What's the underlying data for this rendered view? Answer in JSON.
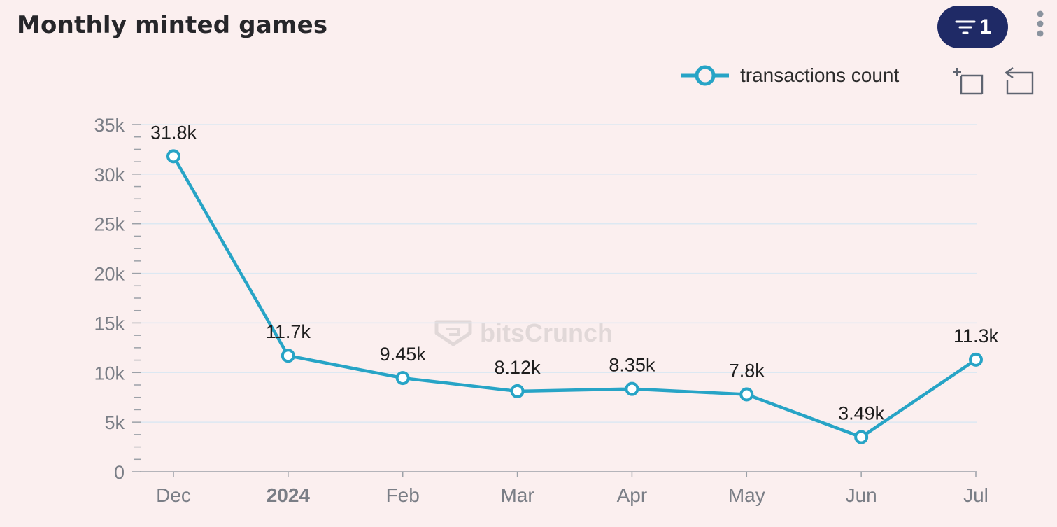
{
  "header": {
    "title": "Monthly minted games",
    "filter_count": "1"
  },
  "icons": {
    "filter": "filter-icon",
    "more": "more-vertical-icon",
    "zoom": "zoom-select-icon",
    "reset": "zoom-reset-icon"
  },
  "colors": {
    "series": "#27A4C6",
    "button_bg": "#1F2A66",
    "background": "#FBEFEF"
  },
  "watermark": {
    "text": "bitsCrunch"
  },
  "chart_data": {
    "type": "line",
    "title": "Monthly minted games",
    "xlabel": "",
    "ylabel": "",
    "ylim": [
      0,
      35000
    ],
    "grid": true,
    "legend_position": "top-right",
    "categories": [
      "Dec",
      "2024",
      "Feb",
      "Mar",
      "Apr",
      "May",
      "Jun",
      "Jul"
    ],
    "y_ticks": [
      {
        "value": 0,
        "label": "0"
      },
      {
        "value": 5000,
        "label": "5k"
      },
      {
        "value": 10000,
        "label": "10k"
      },
      {
        "value": 15000,
        "label": "15k"
      },
      {
        "value": 20000,
        "label": "20k"
      },
      {
        "value": 25000,
        "label": "25k"
      },
      {
        "value": 30000,
        "label": "30k"
      },
      {
        "value": 35000,
        "label": "35k"
      }
    ],
    "series": [
      {
        "name": "transactions count",
        "values": [
          31800,
          11700,
          9450,
          8120,
          8350,
          7800,
          3490,
          11300
        ],
        "labels": [
          "31.8k",
          "11.7k",
          "9.45k",
          "8.12k",
          "8.35k",
          "7.8k",
          "3.49k",
          "11.3k"
        ]
      }
    ]
  }
}
